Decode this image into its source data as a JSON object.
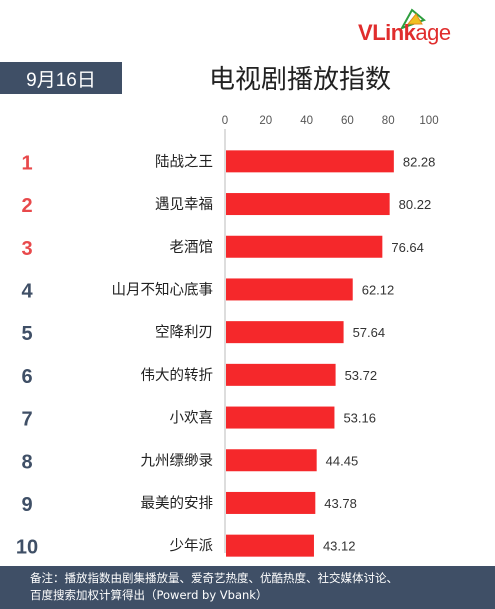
{
  "brand": {
    "logo_v": "V",
    "logo_rest": "Link",
    "logo_tail": "age"
  },
  "header": {
    "date": "9月16日",
    "title": "电视剧播放指数"
  },
  "colors": {
    "bar": "#f5282b",
    "rank_top": "#e8494b",
    "rank": "#3f4f66",
    "banner": "#3f4f66"
  },
  "chart_data": {
    "type": "bar",
    "orientation": "horizontal",
    "title": "电视剧播放指数",
    "ranks": [
      "1",
      "2",
      "3",
      "4",
      "5",
      "6",
      "7",
      "8",
      "9",
      "10"
    ],
    "categories": [
      "陆战之王",
      "遇见幸福",
      "老酒馆",
      "山月不知心底事",
      "空降利刃",
      "伟大的转折",
      "小欢喜",
      "九州缥缈录",
      "最美的安排",
      "少年派"
    ],
    "values": [
      82.28,
      80.22,
      76.64,
      62.12,
      57.64,
      53.72,
      53.16,
      44.45,
      43.78,
      43.12
    ],
    "value_labels": [
      "82.28",
      "80.22",
      "76.64",
      "62.12",
      "57.64",
      "53.72",
      "53.16",
      "44.45",
      "43.78",
      "43.12"
    ],
    "xlim": [
      0,
      100
    ],
    "ticks": [
      "0",
      "20",
      "40",
      "60",
      "80",
      "100"
    ],
    "tick_values": [
      0,
      20,
      40,
      60,
      80,
      100
    ],
    "axis_position": "top",
    "grid": false,
    "legend": "none"
  },
  "footer": {
    "line1": "备注：播放指数由剧集播放量、爱奇艺热度、优酷热度、社交媒体讨论、",
    "line2": "百度搜索加权计算得出（Powerd by Vbank）"
  }
}
